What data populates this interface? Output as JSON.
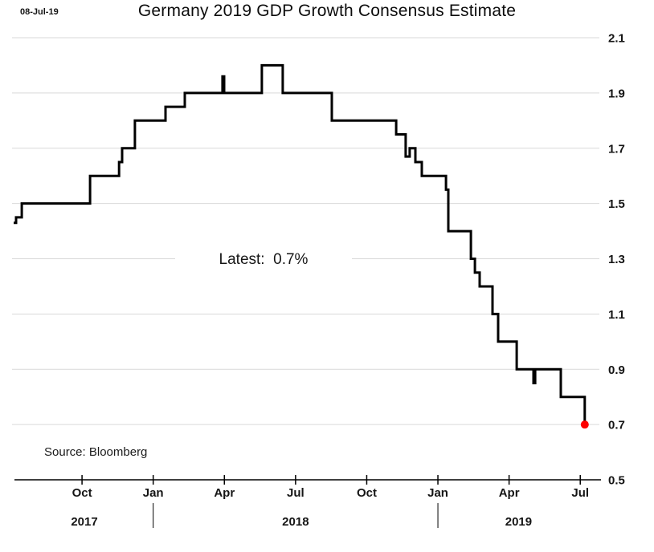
{
  "header": {
    "date_stamp": "08-Jul-19",
    "title": "Germany 2019 GDP Growth Consensus Estimate"
  },
  "annotations": {
    "latest_label": "Latest:  0.7%",
    "source": "Source: Bloomberg"
  },
  "chart_data": {
    "type": "line",
    "line_style": "step-after",
    "title": "Germany 2019 GDP Growth Consensus Estimate",
    "xlabel": "",
    "ylabel": "",
    "x_unit": "months since 1 Jul 2017",
    "xlim_months": [
      0,
      24.8
    ],
    "ylim": [
      0.5,
      2.1
    ],
    "grid": "horizontal",
    "legend": "none",
    "y_ticks": [
      {
        "value": 2.1,
        "label": "2.1"
      },
      {
        "value": 1.9,
        "label": "1.9"
      },
      {
        "value": 1.7,
        "label": "1.7"
      },
      {
        "value": 1.5,
        "label": "1.5"
      },
      {
        "value": 1.3,
        "label": "1.3"
      },
      {
        "value": 1.1,
        "label": "1.1"
      },
      {
        "value": 0.9,
        "label": "0.9"
      },
      {
        "value": 0.7,
        "label": "0.7"
      },
      {
        "value": 0.5,
        "label": "0.5"
      }
    ],
    "x_ticks": [
      {
        "m": 3,
        "label": "Oct"
      },
      {
        "m": 6,
        "label": "Jan"
      },
      {
        "m": 9,
        "label": "Apr"
      },
      {
        "m": 12,
        "label": "Jul"
      },
      {
        "m": 15,
        "label": "Oct"
      },
      {
        "m": 18,
        "label": "Jan"
      },
      {
        "m": 21,
        "label": "Apr"
      },
      {
        "m": 24,
        "label": "Jul"
      }
    ],
    "year_labels": [
      {
        "m": 3.1,
        "label": "2017"
      },
      {
        "m": 12.0,
        "label": "2018"
      },
      {
        "m": 21.4,
        "label": "2019"
      }
    ],
    "year_separators_m": [
      6,
      18
    ],
    "series": [
      {
        "name": "Germany 2019 GDP growth consensus estimate (%)",
        "points": [
          [
            0.12,
            1.43
          ],
          [
            0.22,
            1.45
          ],
          [
            0.46,
            1.5
          ],
          [
            3.34,
            1.6
          ],
          [
            4.56,
            1.65
          ],
          [
            4.69,
            1.7
          ],
          [
            5.23,
            1.8
          ],
          [
            6.52,
            1.85
          ],
          [
            7.33,
            1.9
          ],
          [
            8.92,
            1.96
          ],
          [
            8.99,
            1.9
          ],
          [
            10.58,
            2.0
          ],
          [
            11.46,
            1.9
          ],
          [
            13.53,
            1.8
          ],
          [
            16.24,
            1.75
          ],
          [
            16.64,
            1.67
          ],
          [
            16.81,
            1.7
          ],
          [
            17.05,
            1.65
          ],
          [
            17.32,
            1.6
          ],
          [
            18.34,
            1.55
          ],
          [
            18.44,
            1.4
          ],
          [
            19.39,
            1.3
          ],
          [
            19.56,
            1.25
          ],
          [
            19.76,
            1.2
          ],
          [
            20.3,
            1.1
          ],
          [
            20.54,
            1.0
          ],
          [
            21.32,
            0.9
          ],
          [
            22.03,
            0.85
          ],
          [
            22.1,
            0.9
          ],
          [
            23.18,
            0.8
          ],
          [
            24.19,
            0.7
          ]
        ]
      }
    ],
    "latest_point": {
      "m": 24.19,
      "value": 0.7
    },
    "colors": {
      "line": "#000000",
      "grid": "#d9d9d9",
      "axis": "#000000",
      "latest_dot": "#fe0000",
      "text": "#151515"
    }
  }
}
